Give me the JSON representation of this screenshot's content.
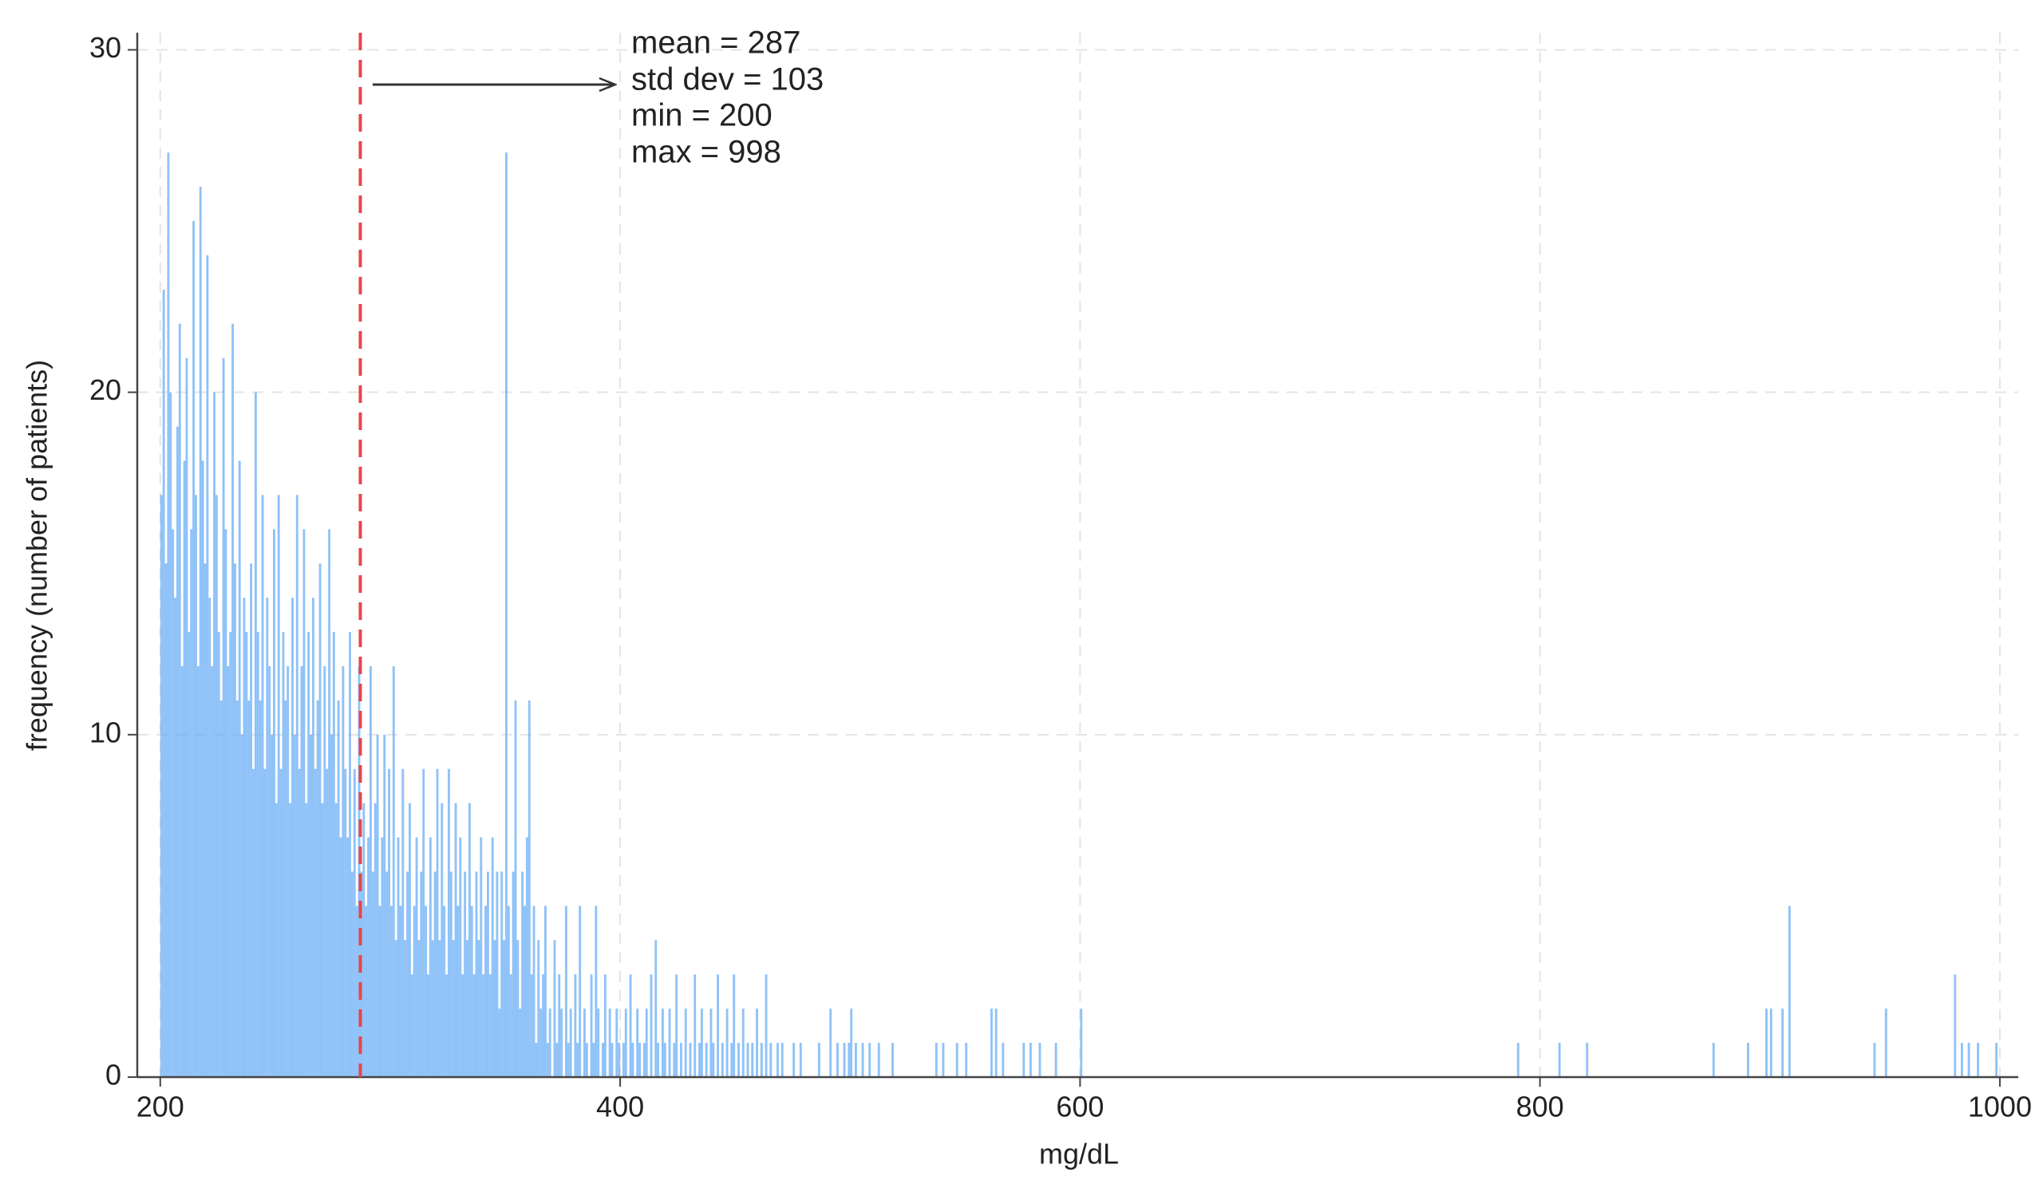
{
  "chart_data": {
    "type": "histogram",
    "x_label": "mg/dL",
    "y_label": "frequency (number of patients)",
    "annotations": [
      "mean = 287",
      "std dev = 103",
      "min = 200",
      "max = 998"
    ],
    "mean_line": 287,
    "color": "#6aaef5",
    "mean_line_color": "#e8454a",
    "grid": true,
    "xlim": [
      190,
      1008
    ],
    "ylim": [
      0,
      30.5
    ],
    "xticks": [
      200,
      400,
      600,
      800,
      1000
    ],
    "yticks": [
      0,
      10,
      20,
      30
    ],
    "bins": [
      200,
      201,
      202,
      203,
      204,
      205,
      206,
      207,
      208,
      209,
      210,
      211,
      212,
      213,
      214,
      215,
      216,
      217,
      218,
      219,
      220,
      221,
      222,
      223,
      224,
      225,
      226,
      227,
      228,
      229,
      230,
      231,
      232,
      233,
      234,
      235,
      236,
      237,
      238,
      239,
      240,
      241,
      242,
      243,
      244,
      245,
      246,
      247,
      248,
      249,
      250,
      251,
      252,
      253,
      254,
      255,
      256,
      257,
      258,
      259,
      260,
      261,
      262,
      263,
      264,
      265,
      266,
      267,
      268,
      269,
      270,
      271,
      272,
      273,
      274,
      275,
      276,
      277,
      278,
      279,
      280,
      281,
      282,
      283,
      284,
      285,
      286,
      287,
      288,
      289,
      290,
      291,
      292,
      293,
      294,
      295,
      296,
      297,
      298,
      299,
      300,
      301,
      302,
      303,
      304,
      305,
      306,
      307,
      308,
      309,
      310,
      311,
      312,
      313,
      314,
      315,
      316,
      317,
      318,
      319,
      320,
      321,
      322,
      323,
      324,
      325,
      326,
      327,
      328,
      329,
      330,
      331,
      332,
      333,
      334,
      335,
      336,
      337,
      338,
      339,
      340,
      341,
      342,
      343,
      344,
      345,
      346,
      347,
      348,
      349,
      350,
      351,
      352,
      353,
      354,
      355,
      356,
      357,
      358,
      359,
      360,
      361,
      362,
      363,
      364,
      365,
      366,
      367,
      368,
      369,
      370,
      371,
      372,
      373,
      374,
      375,
      376,
      377,
      378,
      379,
      380,
      381,
      382,
      383,
      384,
      385,
      386,
      387,
      388,
      389,
      390,
      391,
      392,
      393,
      394,
      395,
      396,
      397,
      398,
      399,
      400,
      401,
      402,
      403,
      404,
      405,
      406,
      407,
      408,
      409,
      410,
      411,
      412,
      413,
      414,
      415,
      416,
      417,
      418,
      419,
      420,
      421,
      422,
      423,
      424,
      425,
      426,
      427,
      428,
      429,
      430,
      431,
      432,
      433,
      434,
      435,
      436,
      437,
      438,
      439,
      440,
      441,
      442,
      443,
      444,
      445,
      446,
      447,
      448,
      449,
      450,
      451,
      452,
      453,
      454,
      455,
      456,
      457,
      458,
      459,
      460,
      461,
      462,
      463,
      464,
      465,
      466,
      467,
      468,
      469,
      470,
      471,
      472,
      473,
      474,
      475,
      476,
      477,
      478,
      479,
      480,
      481,
      482,
      483,
      484,
      485,
      486,
      487,
      488,
      489,
      490,
      491,
      492,
      493,
      494,
      495,
      496,
      497,
      498,
      499,
      500,
      501,
      502,
      503,
      504,
      505,
      506,
      507,
      508,
      509,
      510,
      511,
      512,
      513,
      514,
      515,
      516,
      517,
      518,
      519,
      520,
      521,
      522,
      523,
      524,
      525,
      526,
      527,
      528,
      529,
      530,
      531,
      532,
      533,
      534,
      535,
      536,
      537,
      538,
      539,
      540,
      541,
      542,
      543,
      544,
      545,
      546,
      547,
      548,
      549,
      550,
      551,
      552,
      553,
      554,
      555,
      556,
      557,
      558,
      559,
      560,
      561,
      562,
      563,
      564,
      565,
      566,
      567,
      568,
      569,
      570,
      571,
      572,
      573,
      574,
      575,
      576,
      577,
      578,
      579,
      580,
      581,
      582,
      583,
      584,
      585,
      586,
      587,
      588,
      589,
      590,
      591,
      592,
      593,
      594,
      595,
      596,
      597,
      598,
      599,
      600,
      601,
      602,
      603,
      604,
      605,
      606,
      607,
      608,
      609,
      610,
      611,
      612,
      613,
      614,
      615,
      616,
      617,
      618,
      619,
      620,
      621,
      622,
      623,
      624,
      625,
      626,
      627,
      628,
      629,
      630,
      631,
      632,
      633,
      634,
      635,
      636,
      637,
      638,
      639,
      640,
      641,
      642,
      643,
      644,
      645,
      646,
      647,
      648,
      649,
      650,
      651,
      652,
      653,
      654,
      655,
      656,
      657,
      658,
      659,
      660,
      661,
      662,
      663,
      664,
      665,
      666,
      667,
      668,
      669,
      670,
      671,
      672,
      673,
      674,
      675,
      676,
      677,
      678,
      679,
      680,
      681,
      682,
      683,
      684,
      685,
      686,
      687,
      688,
      689,
      690,
      691,
      692,
      693,
      694,
      695,
      696,
      697,
      698,
      699,
      700,
      701,
      702,
      703,
      704,
      705,
      706,
      707,
      708,
      709,
      710,
      711,
      712,
      713,
      714,
      715,
      716,
      717,
      718,
      719,
      720,
      721,
      722,
      723,
      724,
      725,
      726,
      727,
      728,
      729,
      730,
      731,
      732,
      733,
      734,
      735,
      736,
      737,
      738,
      739,
      740,
      741,
      742,
      743,
      744,
      745,
      746,
      747,
      748,
      749,
      750,
      751,
      752,
      753,
      754,
      755,
      756,
      757,
      758,
      759,
      760,
      761,
      762,
      763,
      764,
      765,
      766,
      767,
      768,
      769,
      770,
      771,
      772,
      773,
      774,
      775,
      776,
      777,
      778,
      779,
      780,
      781,
      782,
      783,
      784,
      785,
      786,
      787,
      788,
      789,
      790,
      791,
      792,
      793,
      794,
      795,
      796,
      797,
      798,
      799,
      800,
      801,
      802,
      803,
      804,
      805,
      806,
      807,
      808,
      809,
      810,
      811,
      812,
      813,
      814,
      815,
      816,
      817,
      818,
      819,
      820,
      821,
      822,
      823,
      824,
      825,
      826,
      827,
      828,
      829,
      830,
      831,
      832,
      833,
      834,
      835,
      836,
      837,
      838,
      839,
      840,
      841,
      842,
      843,
      844,
      845,
      846,
      847,
      848,
      849,
      850,
      851,
      852,
      853,
      854,
      855,
      856,
      857,
      858,
      859,
      860,
      861,
      862,
      863,
      864,
      865,
      866,
      867,
      868,
      869,
      870,
      871,
      872,
      873,
      874,
      875,
      876,
      877,
      878,
      879,
      880,
      881,
      882,
      883,
      884,
      885,
      886,
      887,
      888,
      889,
      890,
      891,
      892,
      893,
      894,
      895,
      896,
      897,
      898,
      899,
      900,
      901,
      902,
      903,
      904,
      905,
      906,
      907,
      908,
      909,
      910,
      911,
      912,
      913,
      914,
      915,
      916,
      917,
      918,
      919,
      920,
      921,
      922,
      923,
      924,
      925,
      926,
      927,
      928,
      929,
      930,
      931,
      932,
      933,
      934,
      935,
      936,
      937,
      938,
      939,
      940,
      941,
      942,
      943,
      944,
      945,
      946,
      947,
      948,
      949,
      950,
      951,
      952,
      953,
      954,
      955,
      956,
      957,
      958,
      959,
      960,
      961,
      962,
      963,
      964,
      965,
      966,
      967,
      968,
      969,
      970,
      971,
      972,
      973,
      974,
      975,
      976,
      977,
      978,
      979,
      980,
      981,
      982,
      983,
      984,
      985,
      986,
      987,
      988,
      989,
      990,
      991,
      992,
      993,
      994,
      995,
      996,
      997,
      998,
      999,
      1000
    ],
    "values": [
      17,
      23,
      15,
      27,
      20,
      16,
      14,
      19,
      22,
      12,
      18,
      21,
      13,
      16,
      25,
      17,
      12,
      26,
      18,
      15,
      24,
      14,
      12,
      20,
      17,
      13,
      11,
      21,
      16,
      12,
      13,
      22,
      15,
      11,
      18,
      10,
      14,
      13,
      11,
      15,
      9,
      20,
      13,
      11,
      17,
      9,
      14,
      12,
      10,
      16,
      8,
      17,
      9,
      13,
      11,
      12,
      8,
      14,
      10,
      17,
      9,
      12,
      16,
      8,
      13,
      10,
      14,
      9,
      11,
      15,
      8,
      12,
      9,
      16,
      10,
      13,
      8,
      11,
      7,
      12,
      9,
      7,
      13,
      6,
      9,
      5,
      12,
      6,
      8,
      5,
      7,
      12,
      6,
      8,
      10,
      5,
      7,
      10,
      6,
      9,
      5,
      12,
      4,
      7,
      5,
      9,
      4,
      6,
      8,
      3,
      5,
      7,
      4,
      6,
      9,
      5,
      3,
      7,
      4,
      6,
      9,
      4,
      8,
      5,
      3,
      9,
      6,
      4,
      8,
      5,
      7,
      3,
      6,
      4,
      8,
      5,
      3,
      6,
      4,
      7,
      3,
      5,
      6,
      3,
      7,
      4,
      6,
      2,
      6,
      4,
      27,
      5,
      3,
      6,
      11,
      4,
      2,
      6,
      5,
      7,
      11,
      3,
      5,
      1,
      4,
      2,
      3,
      5,
      1,
      2,
      0,
      4,
      1,
      3,
      2,
      0,
      5,
      1,
      2,
      0,
      3,
      1,
      5,
      0,
      2,
      1,
      0,
      3,
      1,
      5,
      2,
      0,
      1,
      3,
      0,
      2,
      1,
      0,
      2,
      1,
      0,
      1,
      2,
      0,
      3,
      1,
      0,
      2,
      1,
      0,
      1,
      2,
      0,
      3,
      0,
      4,
      1,
      0,
      2,
      1,
      0,
      2,
      0,
      1,
      3,
      0,
      1,
      0,
      2,
      0,
      1,
      0,
      3,
      0,
      1,
      2,
      0,
      1,
      0,
      2,
      1,
      0,
      3,
      0,
      1,
      0,
      2,
      0,
      1,
      3,
      0,
      1,
      0,
      2,
      0,
      1,
      0,
      1,
      0,
      2,
      0,
      1,
      0,
      3,
      0,
      1,
      0,
      0,
      1,
      0,
      1,
      0,
      0,
      0,
      0,
      1,
      0,
      0,
      1,
      0,
      0,
      0,
      0,
      0,
      0,
      0,
      1,
      0,
      0,
      0,
      0,
      2,
      0,
      0,
      1,
      0,
      0,
      1,
      0,
      1,
      2,
      0,
      1,
      0,
      0,
      1,
      0,
      0,
      1,
      0,
      0,
      0,
      1,
      0,
      0,
      0,
      0,
      0,
      1,
      0,
      0,
      0,
      0,
      0,
      0,
      0,
      0,
      0,
      0,
      0,
      0,
      0,
      0,
      0,
      0,
      0,
      0,
      1,
      0,
      0,
      1,
      0,
      0,
      0,
      0,
      0,
      1,
      0,
      0,
      0,
      1,
      0,
      0,
      0,
      0,
      0,
      0,
      0,
      0,
      0,
      0,
      2,
      0,
      2,
      0,
      0,
      1,
      0,
      0,
      0,
      0,
      0,
      0,
      0,
      0,
      1,
      0,
      0,
      1,
      0,
      0,
      0,
      1,
      0,
      0,
      0,
      0,
      0,
      0,
      1,
      0,
      0,
      0,
      0,
      0,
      0,
      0,
      0,
      0,
      0,
      2,
      0,
      0,
      0,
      0,
      0,
      0,
      0,
      0,
      0,
      0,
      0,
      0,
      0,
      0,
      0,
      0,
      0,
      0,
      0,
      0,
      0,
      0,
      0,
      0,
      0,
      0,
      0,
      0,
      0,
      0,
      0,
      0,
      0,
      0,
      0,
      0,
      0,
      0,
      0,
      0,
      0,
      0,
      0,
      0,
      0,
      0,
      0,
      0,
      0,
      0,
      0,
      0,
      0,
      0,
      0,
      0,
      0,
      0,
      0,
      0,
      0,
      0,
      0,
      0,
      0,
      0,
      0,
      0,
      0,
      0,
      0,
      0,
      0,
      0,
      0,
      0,
      0,
      0,
      0,
      0,
      0,
      0,
      0,
      0,
      0,
      0,
      0,
      0,
      0,
      0,
      0,
      0,
      0,
      0,
      0,
      0,
      0,
      0,
      0,
      0,
      0,
      0,
      0,
      0,
      0,
      0,
      0,
      0,
      0,
      0,
      0,
      0,
      0,
      0,
      0,
      0,
      0,
      0,
      0,
      0,
      0,
      0,
      0,
      0,
      0,
      0,
      0,
      0,
      0,
      0,
      0,
      0,
      0,
      0,
      0,
      0,
      0,
      0,
      0,
      0,
      0,
      0,
      0,
      0,
      0,
      0,
      0,
      0,
      0,
      0,
      0,
      0,
      0,
      0,
      0,
      0,
      0,
      0,
      0,
      0,
      0,
      0,
      0,
      0,
      0,
      0,
      0,
      0,
      0,
      0,
      0,
      0,
      0,
      0,
      0,
      0,
      0,
      0,
      0,
      0,
      0,
      0,
      0,
      0,
      0,
      0,
      0,
      0,
      0,
      1,
      0,
      0,
      0,
      0,
      0,
      0,
      0,
      0,
      0,
      0,
      0,
      0,
      0,
      0,
      0,
      0,
      0,
      1,
      0,
      0,
      0,
      0,
      0,
      0,
      0,
      0,
      0,
      0,
      0,
      1,
      0,
      0,
      0,
      0,
      0,
      0,
      0,
      0,
      0,
      0,
      0,
      0,
      0,
      0,
      0,
      0,
      0,
      0,
      0,
      0,
      0,
      0,
      0,
      0,
      0,
      0,
      0,
      0,
      0,
      0,
      0,
      0,
      0,
      0,
      0,
      0,
      0,
      0,
      0,
      0,
      0,
      0,
      0,
      0,
      0,
      0,
      0,
      0,
      0,
      0,
      0,
      0,
      0,
      0,
      1,
      0,
      0,
      0,
      0,
      0,
      0,
      0,
      0,
      0,
      0,
      0,
      0,
      0,
      0,
      1,
      0,
      0,
      0,
      0,
      0,
      0,
      0,
      2,
      0,
      2,
      0,
      0,
      0,
      0,
      2,
      0,
      0,
      5,
      0,
      0,
      0,
      0,
      0,
      0,
      0,
      0,
      0,
      0,
      0,
      0,
      0,
      0,
      0,
      0,
      0,
      0,
      0,
      0,
      0,
      0,
      0,
      0,
      0,
      0,
      0,
      0,
      0,
      0,
      0,
      0,
      0,
      0,
      0,
      0,
      1,
      0,
      0,
      0,
      0,
      2,
      0,
      0,
      0,
      0,
      0,
      0,
      0,
      0,
      0,
      0,
      0,
      0,
      0,
      0,
      0,
      0,
      0,
      0,
      0,
      0,
      0,
      0,
      0,
      0,
      0,
      0,
      0,
      0,
      0,
      3,
      0,
      0,
      1,
      0,
      0,
      1,
      0,
      0,
      0,
      1,
      0,
      0,
      0,
      0,
      0,
      0,
      0,
      1,
      0
    ]
  }
}
